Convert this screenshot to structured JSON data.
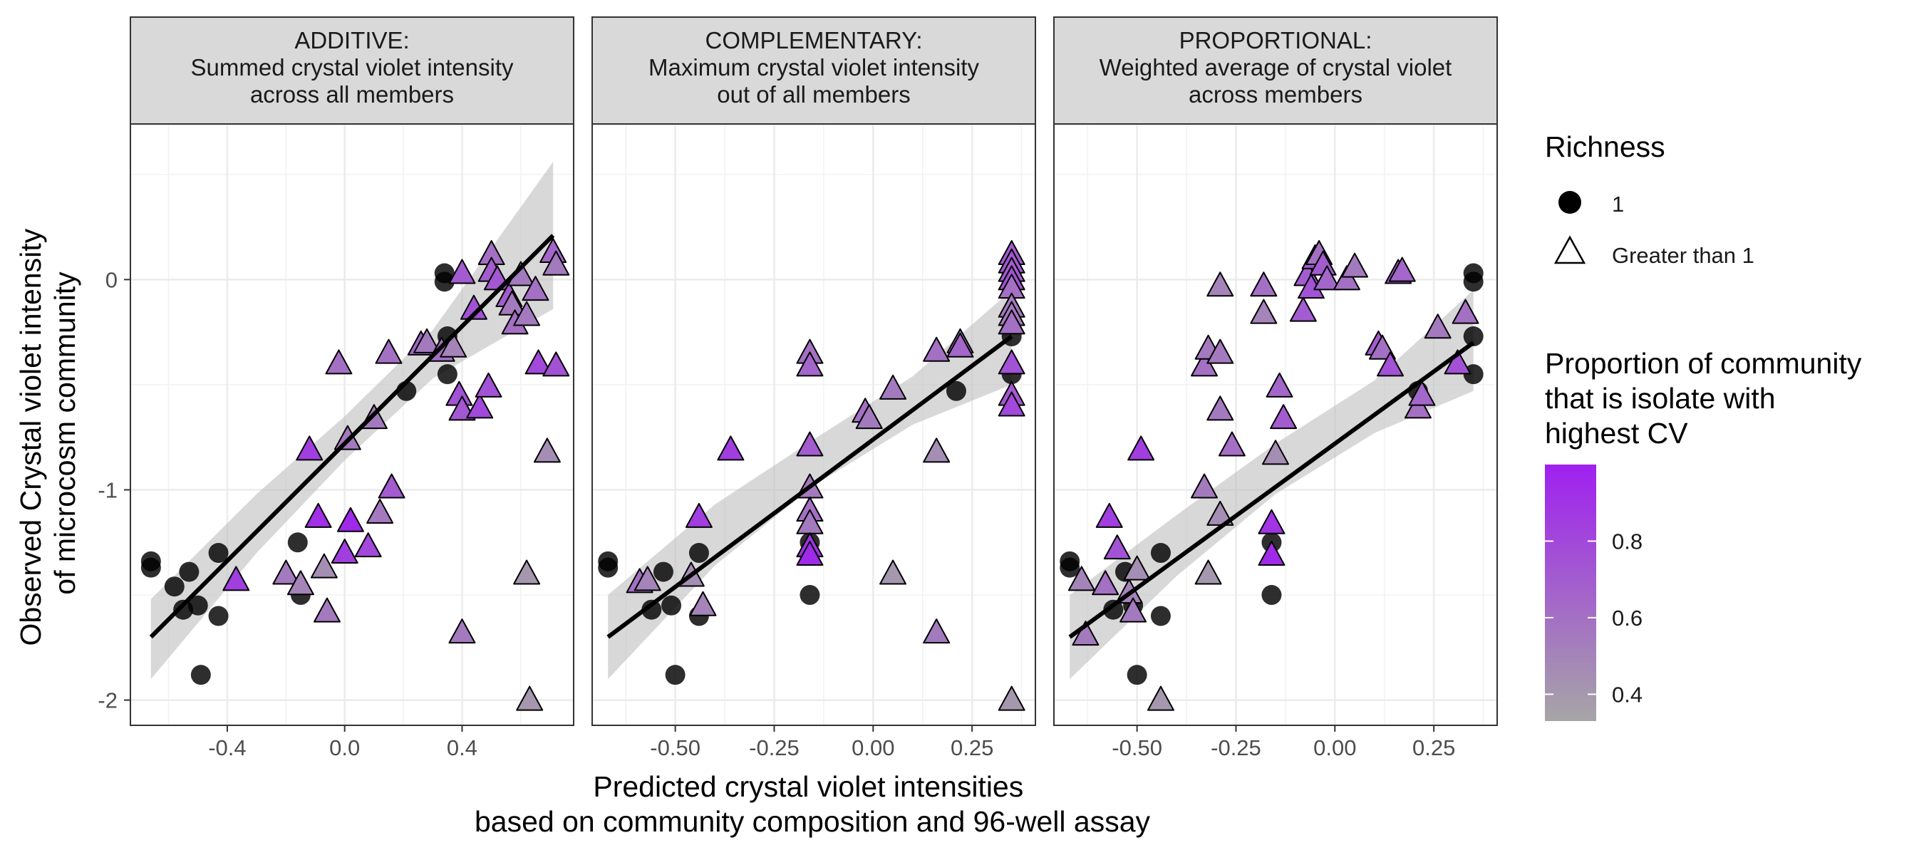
{
  "chart_data": {
    "type": "scatter",
    "ylabel": "Observed Crystal violet intensity\nof microcosm community",
    "xlabel": "Predicted crystal violet intensities\nbased on community composition and 96-well assay",
    "ylim": [
      -2.12,
      0.74
    ],
    "y_ticks": [
      0,
      -1,
      -2
    ],
    "y_tick_labels": [
      "0",
      "-1",
      "-2"
    ],
    "grid": true,
    "legend_position": "right",
    "legends": {
      "shape": {
        "title": "Richness",
        "items": [
          {
            "label": "1",
            "shape": "circle"
          },
          {
            "label": "Greater than 1",
            "shape": "triangle"
          }
        ]
      },
      "color": {
        "title": "Proportion of community\nthat is isolate with\nhighest CV",
        "low_color": "#a6a6a6",
        "high_color": "#a020f0",
        "range": [
          0.33,
          1.0
        ],
        "ticks": [
          0.4,
          0.6,
          0.8
        ],
        "tick_labels": [
          "0.4",
          "0.6",
          "0.8"
        ]
      }
    },
    "colors": {
      "ribbon": "#bebebe",
      "line": "#000000",
      "circle_fill": "#000000",
      "strip_bg": "#d9d9d9"
    },
    "panels": [
      {
        "strip": [
          "ADDITIVE:",
          "Summed crystal violet intensity",
          "across all members"
        ],
        "xlim": [
          -0.73,
          0.78
        ],
        "x_ticks": [
          -0.4,
          0.0,
          0.4
        ],
        "x_tick_labels": [
          "-0.4",
          "0.0",
          "0.4"
        ],
        "fit": {
          "x": [
            -0.66,
            0.71
          ],
          "y": [
            -1.7,
            0.21
          ]
        },
        "ribbon": {
          "x": [
            -0.66,
            -0.3,
            0.0,
            0.3,
            0.71
          ],
          "upper": [
            -1.52,
            -1.02,
            -0.65,
            -0.24,
            0.56
          ],
          "lower": [
            -1.9,
            -1.3,
            -0.86,
            -0.47,
            -0.14
          ]
        },
        "circles": [
          [
            -0.66,
            -1.37
          ],
          [
            -0.66,
            -1.34
          ],
          [
            -0.58,
            -1.46
          ],
          [
            -0.55,
            -1.57
          ],
          [
            -0.53,
            -1.39
          ],
          [
            -0.5,
            -1.55
          ],
          [
            -0.49,
            -1.88
          ],
          [
            -0.43,
            -1.3
          ],
          [
            -0.43,
            -1.6
          ],
          [
            -0.16,
            -1.25
          ],
          [
            -0.15,
            -1.5
          ],
          [
            0.21,
            -0.53
          ],
          [
            0.34,
            0.03
          ],
          [
            0.34,
            -0.01
          ],
          [
            0.35,
            -0.27
          ],
          [
            0.35,
            -0.45
          ]
        ],
        "triangles": [
          [
            -0.37,
            -1.43,
            0.85
          ],
          [
            -0.2,
            -1.4,
            0.55
          ],
          [
            -0.15,
            -1.45,
            0.5
          ],
          [
            -0.12,
            -0.81,
            0.85
          ],
          [
            -0.09,
            -1.13,
            0.92
          ],
          [
            -0.07,
            -1.37,
            0.45
          ],
          [
            -0.06,
            -1.58,
            0.55
          ],
          [
            -0.02,
            -0.4,
            0.6
          ],
          [
            0.0,
            -1.3,
            0.85
          ],
          [
            0.01,
            -0.76,
            0.55
          ],
          [
            0.02,
            -1.15,
            0.95
          ],
          [
            0.08,
            -1.27,
            0.8
          ],
          [
            0.1,
            -0.66,
            0.55
          ],
          [
            0.12,
            -1.11,
            0.55
          ],
          [
            0.15,
            -0.35,
            0.6
          ],
          [
            0.16,
            -0.99,
            0.7
          ],
          [
            0.26,
            -0.31,
            0.65
          ],
          [
            0.28,
            -0.3,
            0.55
          ],
          [
            0.33,
            -0.34,
            0.6
          ],
          [
            0.37,
            -0.32,
            0.5
          ],
          [
            0.39,
            -0.55,
            0.75
          ],
          [
            0.4,
            -0.62,
            0.72
          ],
          [
            0.4,
            0.03,
            0.7
          ],
          [
            0.4,
            -1.68,
            0.55
          ],
          [
            0.44,
            -0.14,
            0.75
          ],
          [
            0.46,
            -0.61,
            0.8
          ],
          [
            0.49,
            -0.51,
            0.75
          ],
          [
            0.5,
            0.12,
            0.6
          ],
          [
            0.5,
            0.04,
            0.7
          ],
          [
            0.52,
            0.0,
            0.72
          ],
          [
            0.56,
            -0.08,
            0.7
          ],
          [
            0.57,
            -0.12,
            0.55
          ],
          [
            0.58,
            -0.21,
            0.6
          ],
          [
            0.6,
            0.02,
            0.55
          ],
          [
            0.62,
            -0.17,
            0.55
          ],
          [
            0.62,
            -1.4,
            0.4
          ],
          [
            0.63,
            -2.0,
            0.4
          ],
          [
            0.65,
            -0.05,
            0.6
          ],
          [
            0.66,
            -0.4,
            0.8
          ],
          [
            0.69,
            -0.82,
            0.45
          ],
          [
            0.71,
            0.13,
            0.65
          ],
          [
            0.72,
            0.07,
            0.55
          ],
          [
            0.72,
            -0.41,
            0.75
          ]
        ]
      },
      {
        "strip": [
          "COMPLEMENTARY:",
          "Maximum crystal violet intensity",
          "out of all members"
        ],
        "xlim": [
          -0.71,
          0.41
        ],
        "x_ticks": [
          -0.5,
          -0.25,
          0.0,
          0.25
        ],
        "x_tick_labels": [
          "-0.50",
          "-0.25",
          "0.00",
          "0.25"
        ],
        "fit": {
          "x": [
            -0.67,
            0.35
          ],
          "y": [
            -1.7,
            -0.27
          ]
        },
        "ribbon": {
          "x": [
            -0.67,
            -0.4,
            -0.15,
            0.1,
            0.35
          ],
          "upper": [
            -1.5,
            -1.07,
            -0.76,
            -0.46,
            -0.05
          ],
          "lower": [
            -1.9,
            -1.36,
            -0.98,
            -0.69,
            -0.5
          ]
        },
        "circles": [
          [
            -0.67,
            -1.37
          ],
          [
            -0.67,
            -1.34
          ],
          [
            -0.56,
            -1.57
          ],
          [
            -0.53,
            -1.39
          ],
          [
            -0.51,
            -1.55
          ],
          [
            -0.5,
            -1.88
          ],
          [
            -0.44,
            -1.3
          ],
          [
            -0.44,
            -1.6
          ],
          [
            -0.16,
            -1.25
          ],
          [
            -0.16,
            -1.5
          ],
          [
            0.21,
            -0.53
          ],
          [
            0.35,
            0.03
          ],
          [
            0.35,
            -0.01
          ],
          [
            0.35,
            -0.27
          ],
          [
            0.35,
            -0.45
          ]
        ],
        "triangles": [
          [
            -0.59,
            -1.44,
            0.6
          ],
          [
            -0.57,
            -1.43,
            0.5
          ],
          [
            -0.46,
            -1.41,
            0.45
          ],
          [
            -0.44,
            -1.13,
            0.85
          ],
          [
            -0.43,
            -1.55,
            0.5
          ],
          [
            -0.36,
            -0.81,
            0.85
          ],
          [
            -0.16,
            -0.35,
            0.6
          ],
          [
            -0.16,
            -0.41,
            0.65
          ],
          [
            -0.16,
            -0.79,
            0.7
          ],
          [
            -0.16,
            -0.99,
            0.55
          ],
          [
            -0.16,
            -1.1,
            0.6
          ],
          [
            -0.16,
            -1.16,
            0.55
          ],
          [
            -0.16,
            -1.27,
            0.9
          ],
          [
            -0.16,
            -1.31,
            0.95
          ],
          [
            -0.02,
            -0.63,
            0.6
          ],
          [
            -0.01,
            -0.66,
            0.55
          ],
          [
            0.05,
            -1.4,
            0.4
          ],
          [
            0.05,
            -0.52,
            0.55
          ],
          [
            0.16,
            -0.34,
            0.6
          ],
          [
            0.16,
            -0.82,
            0.45
          ],
          [
            0.16,
            -1.68,
            0.55
          ],
          [
            0.22,
            -0.3,
            0.55
          ],
          [
            0.22,
            -0.32,
            0.65
          ],
          [
            0.35,
            0.12,
            0.7
          ],
          [
            0.35,
            0.08,
            0.72
          ],
          [
            0.35,
            0.04,
            0.7
          ],
          [
            0.35,
            0.0,
            0.75
          ],
          [
            0.35,
            -0.04,
            0.6
          ],
          [
            0.35,
            -0.13,
            0.55
          ],
          [
            0.35,
            -0.17,
            0.55
          ],
          [
            0.35,
            -0.21,
            0.6
          ],
          [
            0.35,
            -0.4,
            0.75
          ],
          [
            0.35,
            -0.55,
            0.72
          ],
          [
            0.35,
            -0.6,
            0.8
          ],
          [
            0.35,
            -2.0,
            0.4
          ]
        ]
      },
      {
        "strip": [
          "PROPORTIONAL:",
          "Weighted average of crystal violet",
          "across members"
        ],
        "xlim": [
          -0.71,
          0.41
        ],
        "x_ticks": [
          -0.5,
          -0.25,
          0.0,
          0.25
        ],
        "x_tick_labels": [
          "-0.50",
          "-0.25",
          "0.00",
          "0.25"
        ],
        "fit": {
          "x": [
            -0.67,
            0.35
          ],
          "y": [
            -1.7,
            -0.3
          ]
        },
        "ribbon": {
          "x": [
            -0.67,
            -0.4,
            -0.15,
            0.1,
            0.35
          ],
          "upper": [
            -1.5,
            -1.12,
            -0.78,
            -0.48,
            -0.05
          ],
          "lower": [
            -1.9,
            -1.41,
            -1.02,
            -0.73,
            -0.53
          ]
        },
        "circles": [
          [
            -0.67,
            -1.37
          ],
          [
            -0.67,
            -1.34
          ],
          [
            -0.56,
            -1.57
          ],
          [
            -0.53,
            -1.39
          ],
          [
            -0.51,
            -1.55
          ],
          [
            -0.5,
            -1.88
          ],
          [
            -0.44,
            -1.3
          ],
          [
            -0.44,
            -1.6
          ],
          [
            -0.16,
            -1.25
          ],
          [
            -0.16,
            -1.5
          ],
          [
            0.21,
            -0.53
          ],
          [
            0.35,
            0.03
          ],
          [
            0.35,
            -0.01
          ],
          [
            0.35,
            -0.27
          ],
          [
            0.35,
            -0.45
          ]
        ],
        "triangles": [
          [
            -0.64,
            -1.43,
            0.5
          ],
          [
            -0.63,
            -1.69,
            0.55
          ],
          [
            -0.58,
            -1.45,
            0.6
          ],
          [
            -0.57,
            -1.13,
            0.85
          ],
          [
            -0.55,
            -1.28,
            0.75
          ],
          [
            -0.52,
            -1.49,
            0.5
          ],
          [
            -0.51,
            -1.58,
            0.55
          ],
          [
            -0.5,
            -1.38,
            0.45
          ],
          [
            -0.49,
            -0.81,
            0.85
          ],
          [
            -0.44,
            -2.0,
            0.4
          ],
          [
            -0.33,
            -0.99,
            0.55
          ],
          [
            -0.33,
            -0.41,
            0.6
          ],
          [
            -0.32,
            -0.33,
            0.55
          ],
          [
            -0.32,
            -1.4,
            0.4
          ],
          [
            -0.29,
            -0.35,
            0.55
          ],
          [
            -0.29,
            -0.03,
            0.5
          ],
          [
            -0.29,
            -0.62,
            0.55
          ],
          [
            -0.29,
            -1.12,
            0.45
          ],
          [
            -0.26,
            -0.79,
            0.6
          ],
          [
            -0.18,
            -0.03,
            0.6
          ],
          [
            -0.18,
            -0.16,
            0.5
          ],
          [
            -0.16,
            -1.16,
            0.9
          ],
          [
            -0.16,
            -1.31,
            0.95
          ],
          [
            -0.15,
            -0.83,
            0.45
          ],
          [
            -0.14,
            -0.51,
            0.65
          ],
          [
            -0.13,
            -0.66,
            0.7
          ],
          [
            -0.08,
            -0.15,
            0.7
          ],
          [
            -0.07,
            0.02,
            0.7
          ],
          [
            -0.06,
            -0.04,
            0.75
          ],
          [
            -0.05,
            0.1,
            0.72
          ],
          [
            -0.04,
            0.12,
            0.6
          ],
          [
            -0.03,
            0.07,
            0.7
          ],
          [
            -0.02,
            0.0,
            0.65
          ],
          [
            0.03,
            0.0,
            0.6
          ],
          [
            0.05,
            0.06,
            0.55
          ],
          [
            0.11,
            -0.31,
            0.7
          ],
          [
            0.12,
            -0.33,
            0.6
          ],
          [
            0.14,
            -0.41,
            0.75
          ],
          [
            0.16,
            0.03,
            0.7
          ],
          [
            0.17,
            0.04,
            0.65
          ],
          [
            0.21,
            -0.61,
            0.6
          ],
          [
            0.22,
            -0.55,
            0.65
          ],
          [
            0.26,
            -0.23,
            0.55
          ],
          [
            0.31,
            -0.4,
            0.75
          ],
          [
            0.33,
            -0.16,
            0.6
          ]
        ]
      }
    ]
  }
}
